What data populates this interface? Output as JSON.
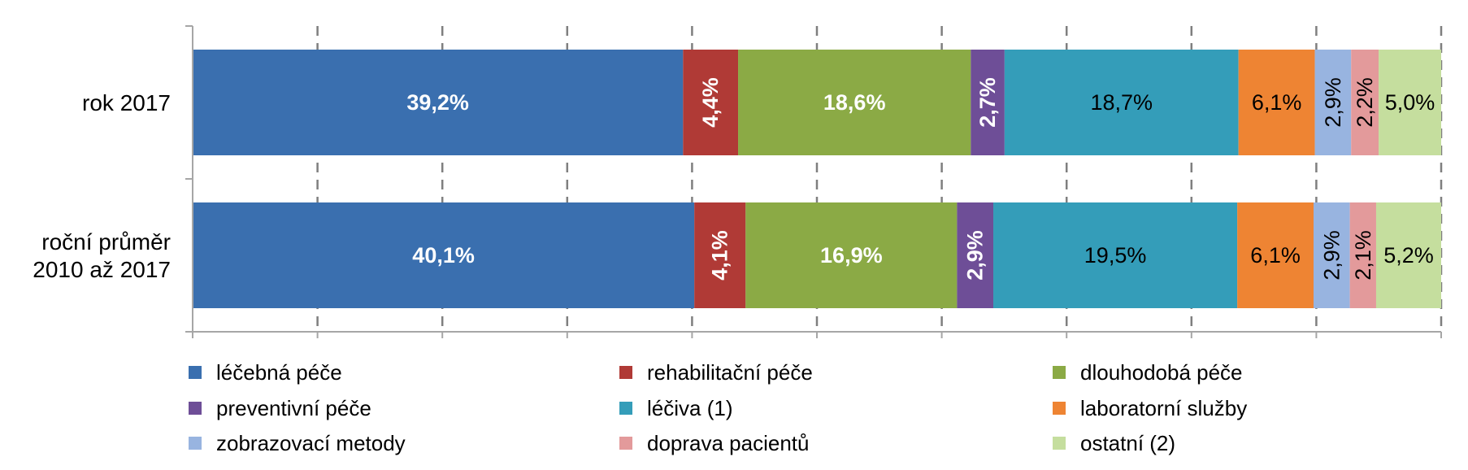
{
  "chart_data": {
    "type": "bar",
    "orientation": "horizontal",
    "stacked": "percent",
    "title": "",
    "xlabel": "",
    "ylabel": "",
    "xlim": [
      0,
      100
    ],
    "grid": true,
    "legend_position": "bottom",
    "categories": [
      [
        "rok 2017"
      ],
      [
        "roční průměr",
        "2010 až 2017"
      ]
    ],
    "series": [
      {
        "name": "léčebná péče",
        "color": "#3A6FAF",
        "values": [
          39.2,
          40.1
        ],
        "labels": [
          "39,2%",
          "40,1%"
        ],
        "label_color": "#ffffff",
        "label_bold": true,
        "label_rotated": false
      },
      {
        "name": "rehabilitační péče",
        "color": "#B03A36",
        "values": [
          4.4,
          4.1
        ],
        "labels": [
          "4,4%",
          "4,1%"
        ],
        "label_color": "#ffffff",
        "label_bold": true,
        "label_rotated": true
      },
      {
        "name": "dlouhodobá péče",
        "color": "#8BAA45",
        "values": [
          18.6,
          16.9
        ],
        "labels": [
          "18,6%",
          "16,9%"
        ],
        "label_color": "#ffffff",
        "label_bold": true,
        "label_rotated": false
      },
      {
        "name": "preventivní péče",
        "color": "#6E4E97",
        "values": [
          2.7,
          2.9
        ],
        "labels": [
          "2,7%",
          "2,9%"
        ],
        "label_color": "#ffffff",
        "label_bold": true,
        "label_rotated": true
      },
      {
        "name": "léčiva (1)",
        "color": "#349DB9",
        "values": [
          18.7,
          19.5
        ],
        "labels": [
          "18,7%",
          "19,5%"
        ],
        "label_color": "#000000",
        "label_bold": false,
        "label_rotated": false
      },
      {
        "name": "laboratorní služby",
        "color": "#EE8433",
        "values": [
          6.1,
          6.1
        ],
        "labels": [
          "6,1%",
          "6,1%"
        ],
        "label_color": "#000000",
        "label_bold": false,
        "label_rotated": false
      },
      {
        "name": "zobrazovací metody",
        "color": "#98B4E0",
        "values": [
          2.9,
          2.9
        ],
        "labels": [
          "2,9%",
          "2,9%"
        ],
        "label_color": "#000000",
        "label_bold": false,
        "label_rotated": true
      },
      {
        "name": "doprava pacientů",
        "color": "#E39A9B",
        "values": [
          2.2,
          2.1
        ],
        "labels": [
          "2,2%",
          "2,1%"
        ],
        "label_color": "#000000",
        "label_bold": false,
        "label_rotated": true
      },
      {
        "name": "ostatní (2)",
        "color": "#C5DE9E",
        "values": [
          5.0,
          5.2
        ],
        "labels": [
          "5,0%",
          "5,2%"
        ],
        "label_color": "#000000",
        "label_bold": false,
        "label_rotated": false
      }
    ]
  }
}
